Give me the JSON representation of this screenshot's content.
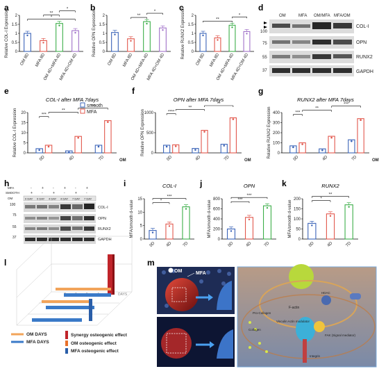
{
  "panel_letters": [
    "a",
    "b",
    "c",
    "d",
    "e",
    "f",
    "g",
    "h",
    "i",
    "j",
    "k",
    "l",
    "m"
  ],
  "colors": {
    "blue": "#3a63b8",
    "red": "#e2574c",
    "green": "#3cae49",
    "purple": "#a070c8",
    "blot": "#1b1b1b"
  },
  "chart_data": [
    {
      "panel": "a",
      "type": "bar",
      "ylabel": "Relative COL-I Expression",
      "categories": [
        "OM 8D",
        "MFA 8D",
        "OM 4D+MFA 4D",
        "MFA 4D+OM 4D"
      ],
      "values": [
        1.0,
        0.6,
        1.55,
        1.15
      ],
      "ylim": [
        0,
        2.0
      ],
      "yticks": [
        0,
        0.5,
        1.0,
        1.5,
        2.0
      ],
      "sig": [
        [
          "*",
          0,
          3
        ],
        [
          "**",
          1,
          2
        ],
        [
          "*",
          2,
          3
        ]
      ]
    },
    {
      "panel": "b",
      "type": "bar",
      "ylabel": "Relative OPN Expression",
      "categories": [
        "OM 8D",
        "MFA 8D",
        "OM 4D+MFA 4D",
        "MFA 4D+OM 4D"
      ],
      "values": [
        1.05,
        0.7,
        1.65,
        1.3
      ],
      "ylim": [
        0,
        2.0
      ],
      "yticks": [
        0,
        0.5,
        1.0,
        1.5,
        2.0
      ],
      "sig": [
        [
          "**",
          1,
          2
        ],
        [
          "*",
          2,
          3
        ]
      ]
    },
    {
      "panel": "c",
      "type": "bar",
      "ylabel": "Relative RUNX2 Expression",
      "categories": [
        "OM 8D",
        "MFA 8D",
        "OM 4D+MFA 4D",
        "MFA 4D+OM 4D"
      ],
      "values": [
        1.0,
        0.75,
        1.45,
        1.1
      ],
      "ylim": [
        0,
        2.0
      ],
      "yticks": [
        0,
        0.5,
        1.0,
        1.5,
        2.0
      ],
      "sig": [
        [
          "**",
          0,
          2
        ],
        [
          "*",
          2,
          3
        ]
      ]
    },
    {
      "panel": "e",
      "type": "bar",
      "title": "COL-I after MFA 7days",
      "ylabel": "Relative COL-I Expression",
      "categories": [
        "0D",
        "4D",
        "7D"
      ],
      "xlabel": "OM",
      "series": [
        {
          "name": "smooth",
          "values": [
            2.1,
            1.0,
            3.8
          ]
        },
        {
          "name": "MFA",
          "values": [
            3.8,
            8.2,
            16.0
          ]
        }
      ],
      "ylim": [
        0,
        20
      ],
      "yticks": [
        0,
        5,
        10,
        15,
        20
      ],
      "sig": [
        [
          "***",
          0,
          1
        ],
        [
          "**",
          1,
          3
        ],
        [
          "***",
          3,
          5
        ]
      ]
    },
    {
      "panel": "f",
      "type": "bar",
      "title": "OPN after MFA 7days",
      "ylabel": "Relative OPN Expression",
      "categories": [
        "0D",
        "4D",
        "7D"
      ],
      "xlabel": "OM",
      "series": [
        {
          "name": "smooth",
          "values": [
            190,
            110,
            215
          ]
        },
        {
          "name": "MFA",
          "values": [
            200,
            560,
            870
          ]
        }
      ],
      "ylim": [
        0,
        1000
      ],
      "yticks": [
        0,
        500,
        1000
      ],
      "sig": [
        [
          "****",
          0,
          1
        ],
        [
          "**",
          1,
          3
        ],
        [
          "**",
          3,
          5
        ]
      ]
    },
    {
      "panel": "g",
      "type": "bar",
      "title": "RUNX2 after MFA 7days",
      "ylabel": "Relative RUNX2 Expression",
      "categories": [
        "0D",
        "4D",
        "7D"
      ],
      "xlabel": "OM",
      "series": [
        {
          "name": "smooth",
          "values": [
            70,
            40,
            130
          ]
        },
        {
          "name": "MFA",
          "values": [
            100,
            165,
            340
          ]
        }
      ],
      "ylim": [
        0,
        400
      ],
      "yticks": [
        0,
        100,
        200,
        300,
        400
      ],
      "sig": [
        [
          "***",
          0,
          1
        ],
        [
          "**",
          1,
          3
        ],
        [
          "***",
          3,
          5
        ]
      ]
    },
    {
      "panel": "i",
      "type": "bar",
      "title": "COL-I",
      "ylabel": "MFA/smooth d-value",
      "categories": [
        "0D",
        "4D",
        "7D"
      ],
      "values": [
        3.2,
        5.6,
        12.0
      ],
      "ylim": [
        0,
        15
      ],
      "yticks": [
        0,
        5,
        10,
        15
      ],
      "sig": [
        [
          "*",
          0,
          1
        ],
        [
          "***",
          0,
          2
        ]
      ]
    },
    {
      "panel": "j",
      "type": "bar",
      "title": "OPN",
      "ylabel": "MFA/smooth d-value",
      "categories": [
        "0D",
        "4D",
        "7D"
      ],
      "values": [
        200,
        430,
        660
      ],
      "ylim": [
        0,
        800
      ],
      "yticks": [
        0,
        200,
        400,
        600,
        800
      ],
      "sig": [
        [
          "***",
          0,
          1
        ],
        [
          "***",
          0,
          2
        ]
      ]
    },
    {
      "panel": "k",
      "type": "bar",
      "title": "RUNX2",
      "ylabel": "MFA/smooth d-value",
      "categories": [
        "0D",
        "4D",
        "7D"
      ],
      "values": [
        78,
        125,
        170
      ],
      "ylim": [
        0,
        200
      ],
      "yticks": [
        0,
        50,
        100,
        150,
        200
      ],
      "sig": [
        [
          "*",
          0,
          1
        ],
        [
          "**",
          0,
          2
        ]
      ]
    }
  ],
  "blot_d": {
    "lanes": [
      "OM",
      "MFA",
      "OM/MFA",
      "MFA/OM"
    ],
    "rows": [
      "COL-I",
      "OPN",
      "RUNX2",
      "GAPDH"
    ],
    "markers": [
      "100",
      "75",
      "55",
      "37"
    ]
  },
  "blot_h": {
    "rows": [
      "COL-I",
      "OPN",
      "RUNX2",
      "GAPDH"
    ],
    "row_labels": [
      "MFA",
      "SMOOTH",
      "OM"
    ],
    "days": [
      "0 DAY",
      "0 DAY",
      "4 DAY",
      "4 DAY",
      "7 DAY",
      "7 DAY"
    ],
    "markers": [
      "100",
      "75",
      "55",
      "37"
    ]
  },
  "panel_l": {
    "day_ticks": [
      "7",
      "6",
      "5",
      "4",
      "3"
    ],
    "days_label": "DAYS",
    "legend": [
      "OM DAYS",
      "MFA DAYS",
      "Synergy osteogenic effect",
      "OM osteogenic effect",
      "MFA osteogenic effect"
    ]
  },
  "panel_m": {
    "labels": [
      "OM",
      "MFA",
      "F-actin",
      "Pro-Collagen",
      "Collagen",
      "Vinculin Actin modulator",
      "HDAC",
      "FAK (Signal mediator)",
      "Integrin"
    ]
  }
}
